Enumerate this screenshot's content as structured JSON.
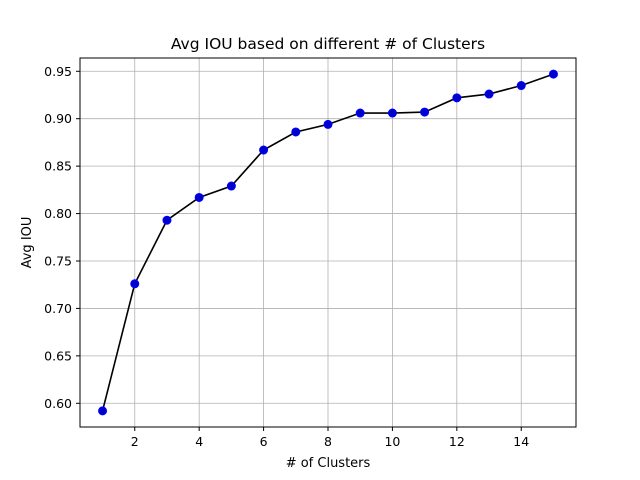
{
  "chart_data": {
    "type": "line",
    "title": "Avg IOU based on different # of Clusters",
    "xlabel": "# of Clusters",
    "ylabel": "Avg IOU",
    "xlim": [
      0.3,
      15.7
    ],
    "ylim": [
      0.575,
      0.964
    ],
    "xticks": [
      2,
      4,
      6,
      8,
      10,
      12,
      14
    ],
    "yticks": [
      0.6,
      0.65,
      0.7,
      0.75,
      0.8,
      0.85,
      0.9,
      0.95
    ],
    "ytick_labels": [
      "0.60",
      "0.65",
      "0.70",
      "0.75",
      "0.80",
      "0.85",
      "0.90",
      "0.95"
    ],
    "grid": true,
    "line_color": "#000000",
    "marker_color": "#0000cc",
    "marker_edge_color": "#0000ff",
    "series": [
      {
        "x": [
          1,
          2,
          3,
          4,
          5,
          6,
          7,
          8,
          9,
          10,
          11,
          12,
          13,
          14,
          15
        ],
        "values": [
          0.592,
          0.726,
          0.793,
          0.817,
          0.829,
          0.867,
          0.886,
          0.894,
          0.906,
          0.906,
          0.907,
          0.922,
          0.926,
          0.935,
          0.947
        ]
      }
    ]
  }
}
